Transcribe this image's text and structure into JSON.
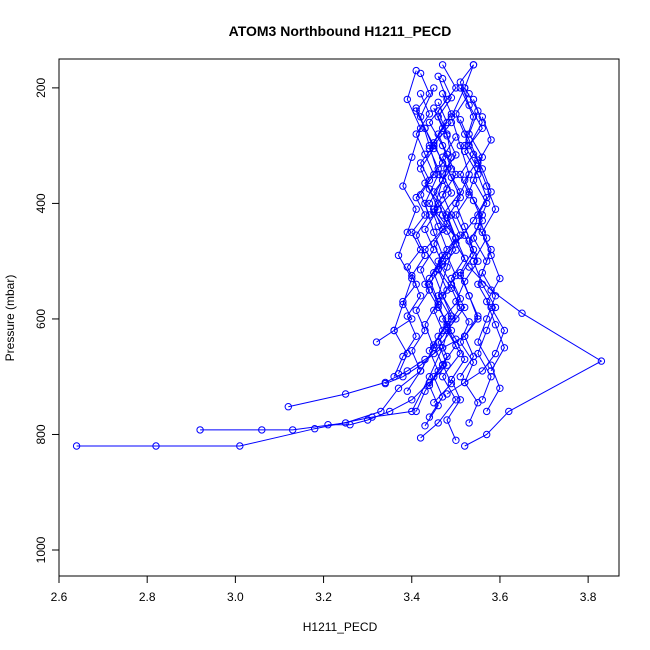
{
  "chart_data": {
    "type": "line",
    "title": "ATOM3 Northbound H1211_PECD",
    "xlabel": "H1211_PECD",
    "ylabel": "Pressure (mbar)",
    "xlim": [
      2.6,
      3.87
    ],
    "ylim": [
      1045,
      150
    ],
    "y_reversed": true,
    "x_ticks": [
      "2.6",
      "2.8",
      "3.0",
      "3.2",
      "3.4",
      "3.6",
      "3.8"
    ],
    "y_ticks": [
      "200",
      "400",
      "600",
      "800",
      "1000"
    ],
    "grid": false,
    "colors": {
      "series": "#0000ff",
      "axes": "#000000",
      "background": "#ffffff"
    },
    "marker": "open-circle",
    "series": [
      {
        "x": [
          2.64,
          2.82,
          3.01,
          3.18,
          3.31,
          3.4,
          3.44,
          3.47,
          3.49,
          3.46,
          3.48,
          3.5,
          3.45,
          3.47,
          3.49,
          3.48,
          3.46,
          3.5,
          3.47
        ],
        "y": [
          820,
          820,
          820,
          790,
          770,
          760,
          700,
          650,
          600,
          560,
          510,
          460,
          410,
          360,
          320,
          280,
          240,
          200,
          160
        ]
      },
      {
        "x": [
          2.92,
          3.06,
          3.13,
          3.25,
          3.33,
          3.37,
          3.42,
          3.45,
          3.43,
          3.46,
          3.44,
          3.47,
          3.45,
          3.43,
          3.46,
          3.44,
          3.42,
          3.45
        ],
        "y": [
          792,
          792,
          792,
          780,
          760,
          720,
          690,
          650,
          610,
          570,
          530,
          490,
          450,
          400,
          350,
          300,
          250,
          200
        ]
      },
      {
        "x": [
          3.12,
          3.25,
          3.34,
          3.39,
          3.43,
          3.47,
          3.52,
          3.55,
          3.53,
          3.51,
          3.54,
          3.52,
          3.5,
          3.53,
          3.51,
          3.49,
          3.52
        ],
        "y": [
          752,
          730,
          710,
          690,
          670,
          650,
          630,
          600,
          560,
          520,
          480,
          440,
          400,
          350,
          300,
          250,
          200
        ]
      },
      {
        "x": [
          3.52,
          3.57,
          3.62,
          3.83,
          3.65,
          3.58,
          3.53,
          3.5,
          3.54,
          3.57,
          3.55,
          3.52,
          3.56,
          3.53,
          3.51,
          3.54
        ],
        "y": [
          820,
          800,
          760,
          673,
          590,
          550,
          510,
          470,
          430,
          390,
          350,
          310,
          270,
          230,
          190,
          160
        ]
      },
      {
        "x": [
          3.21,
          3.26,
          3.3,
          3.35,
          3.4,
          3.44,
          3.48,
          3.46,
          3.5,
          3.47,
          3.45,
          3.48,
          3.46,
          3.44,
          3.47
        ],
        "y": [
          783,
          783,
          775,
          760,
          740,
          710,
          680,
          640,
          600,
          560,
          520,
          480,
          440,
          400,
          360
        ]
      },
      {
        "x": [
          3.34,
          3.38,
          3.42,
          3.45,
          3.49,
          3.46,
          3.43,
          3.47,
          3.5,
          3.48,
          3.45,
          3.49,
          3.47,
          3.44,
          3.48,
          3.46
        ],
        "y": [
          712,
          700,
          680,
          660,
          620,
          580,
          540,
          500,
          460,
          420,
          380,
          340,
          300,
          260,
          220,
          180
        ]
      },
      {
        "x": [
          3.32,
          3.36,
          3.4,
          3.38,
          3.41,
          3.39,
          3.42,
          3.4,
          3.43,
          3.41,
          3.44,
          3.42,
          3.45,
          3.43,
          3.41,
          3.44,
          3.42
        ],
        "y": [
          640,
          620,
          600,
          570,
          540,
          510,
          480,
          450,
          420,
          390,
          360,
          330,
          300,
          270,
          240,
          210,
          175
        ]
      },
      {
        "x": [
          3.57,
          3.6,
          3.58,
          3.55,
          3.57,
          3.59,
          3.56,
          3.58,
          3.55,
          3.57,
          3.54,
          3.56,
          3.53,
          3.55,
          3.52,
          3.54
        ],
        "y": [
          760,
          720,
          680,
          640,
          600,
          560,
          520,
          480,
          440,
          400,
          360,
          320,
          280,
          240,
          200,
          160
        ]
      },
      {
        "x": [
          3.42,
          3.46,
          3.5,
          3.47,
          3.51,
          3.48,
          3.52,
          3.49,
          3.46,
          3.5,
          3.47,
          3.51,
          3.48,
          3.45,
          3.49
        ],
        "y": [
          806,
          780,
          740,
          700,
          660,
          620,
          580,
          540,
          500,
          460,
          420,
          380,
          340,
          300,
          260
        ]
      },
      {
        "x": [
          3.37,
          3.39,
          3.36,
          3.38,
          3.4,
          3.37,
          3.39,
          3.41,
          3.38,
          3.4,
          3.42,
          3.39,
          3.41
        ],
        "y": [
          695,
          660,
          620,
          575,
          530,
          490,
          450,
          410,
          370,
          320,
          270,
          220,
          170
        ]
      },
      {
        "x": [
          3.48,
          3.52,
          3.56,
          3.59,
          3.61,
          3.58,
          3.55,
          3.57,
          3.54,
          3.56,
          3.53,
          3.55,
          3.52,
          3.54,
          3.51
        ],
        "y": [
          730,
          710,
          690,
          660,
          620,
          580,
          540,
          500,
          460,
          420,
          380,
          340,
          300,
          250,
          200
        ]
      },
      {
        "x": [
          3.44,
          3.47,
          3.45,
          3.48,
          3.46,
          3.49,
          3.47,
          3.5,
          3.48,
          3.51,
          3.49,
          3.47,
          3.5,
          3.48,
          3.46,
          3.49,
          3.47
        ],
        "y": [
          770,
          735,
          700,
          665,
          630,
          595,
          560,
          525,
          490,
          455,
          420,
          385,
          350,
          315,
          280,
          245,
          210
        ]
      },
      {
        "x": [
          3.41,
          3.43,
          3.46,
          3.44,
          3.47,
          3.45,
          3.48,
          3.46,
          3.43,
          3.47,
          3.45,
          3.48,
          3.46,
          3.44,
          3.47,
          3.45
        ],
        "y": [
          760,
          725,
          690,
          655,
          620,
          585,
          550,
          515,
          480,
          445,
          410,
          375,
          340,
          305,
          270,
          235
        ]
      },
      {
        "x": [
          3.53,
          3.55,
          3.52,
          3.54,
          3.51,
          3.53,
          3.5,
          3.52,
          3.55,
          3.53,
          3.56,
          3.54,
          3.52,
          3.55,
          3.53,
          3.51
        ],
        "y": [
          780,
          745,
          710,
          675,
          640,
          605,
          570,
          535,
          500,
          465,
          430,
          395,
          360,
          325,
          290,
          255
        ]
      },
      {
        "x": [
          3.39,
          3.42,
          3.4,
          3.43,
          3.41,
          3.44,
          3.42,
          3.45,
          3.43,
          3.46,
          3.44,
          3.42,
          3.45,
          3.43,
          3.41
        ],
        "y": [
          725,
          690,
          655,
          620,
          585,
          550,
          515,
          480,
          445,
          410,
          375,
          340,
          305,
          270,
          235
        ]
      },
      {
        "x": [
          3.5,
          3.48,
          3.51,
          3.49,
          3.52,
          3.5,
          3.47,
          3.51,
          3.49,
          3.52,
          3.5,
          3.48,
          3.51,
          3.49,
          3.47,
          3.5
        ],
        "y": [
          810,
          775,
          740,
          705,
          670,
          635,
          600,
          565,
          530,
          495,
          460,
          425,
          390,
          355,
          320,
          285
        ]
      },
      {
        "x": [
          3.36,
          3.38,
          3.41,
          3.39,
          3.42,
          3.4,
          3.43,
          3.41,
          3.44,
          3.42,
          3.45,
          3.43,
          3.41,
          3.44,
          3.42
        ],
        "y": [
          700,
          665,
          630,
          595,
          560,
          525,
          490,
          455,
          420,
          385,
          350,
          315,
          280,
          245,
          210
        ]
      },
      {
        "x": [
          3.56,
          3.58,
          3.55,
          3.57,
          3.59,
          3.56,
          3.54,
          3.57,
          3.55,
          3.58,
          3.56,
          3.53,
          3.56,
          3.54
        ],
        "y": [
          740,
          700,
          660,
          620,
          580,
          540,
          500,
          460,
          420,
          380,
          340,
          300,
          260,
          220
        ]
      },
      {
        "x": [
          3.45,
          3.49,
          3.47,
          3.5,
          3.48,
          3.51,
          3.49,
          3.46,
          3.5,
          3.48,
          3.45,
          3.49,
          3.47,
          3.5,
          3.48,
          3.46,
          3.49,
          3.47
        ],
        "y": [
          745,
          712,
          679,
          646,
          613,
          580,
          547,
          514,
          481,
          448,
          415,
          382,
          349,
          316,
          283,
          250,
          217,
          184
        ]
      },
      {
        "x": [
          3.43,
          3.46,
          3.44,
          3.47,
          3.45,
          3.48,
          3.46,
          3.44,
          3.47,
          3.45,
          3.48,
          3.46,
          3.43,
          3.47,
          3.45,
          3.48,
          3.46
        ],
        "y": [
          785,
          750,
          715,
          680,
          645,
          610,
          575,
          540,
          505,
          470,
          435,
          400,
          365,
          330,
          295,
          260,
          225
        ]
      },
      {
        "x": [
          3.51,
          3.54,
          3.52,
          3.55,
          3.53,
          3.51,
          3.54,
          3.52,
          3.5,
          3.53,
          3.51,
          3.54,
          3.52,
          3.5,
          3.53
        ],
        "y": [
          700,
          665,
          630,
          595,
          560,
          525,
          490,
          455,
          420,
          385,
          350,
          315,
          280,
          245,
          210
        ]
      },
      {
        "x": [
          3.58,
          3.61,
          3.59,
          3.57,
          3.6,
          3.58,
          3.56,
          3.59,
          3.57,
          3.55,
          3.58,
          3.56
        ],
        "y": [
          690,
          650,
          610,
          570,
          530,
          490,
          450,
          410,
          370,
          330,
          290,
          250
        ]
      }
    ]
  }
}
